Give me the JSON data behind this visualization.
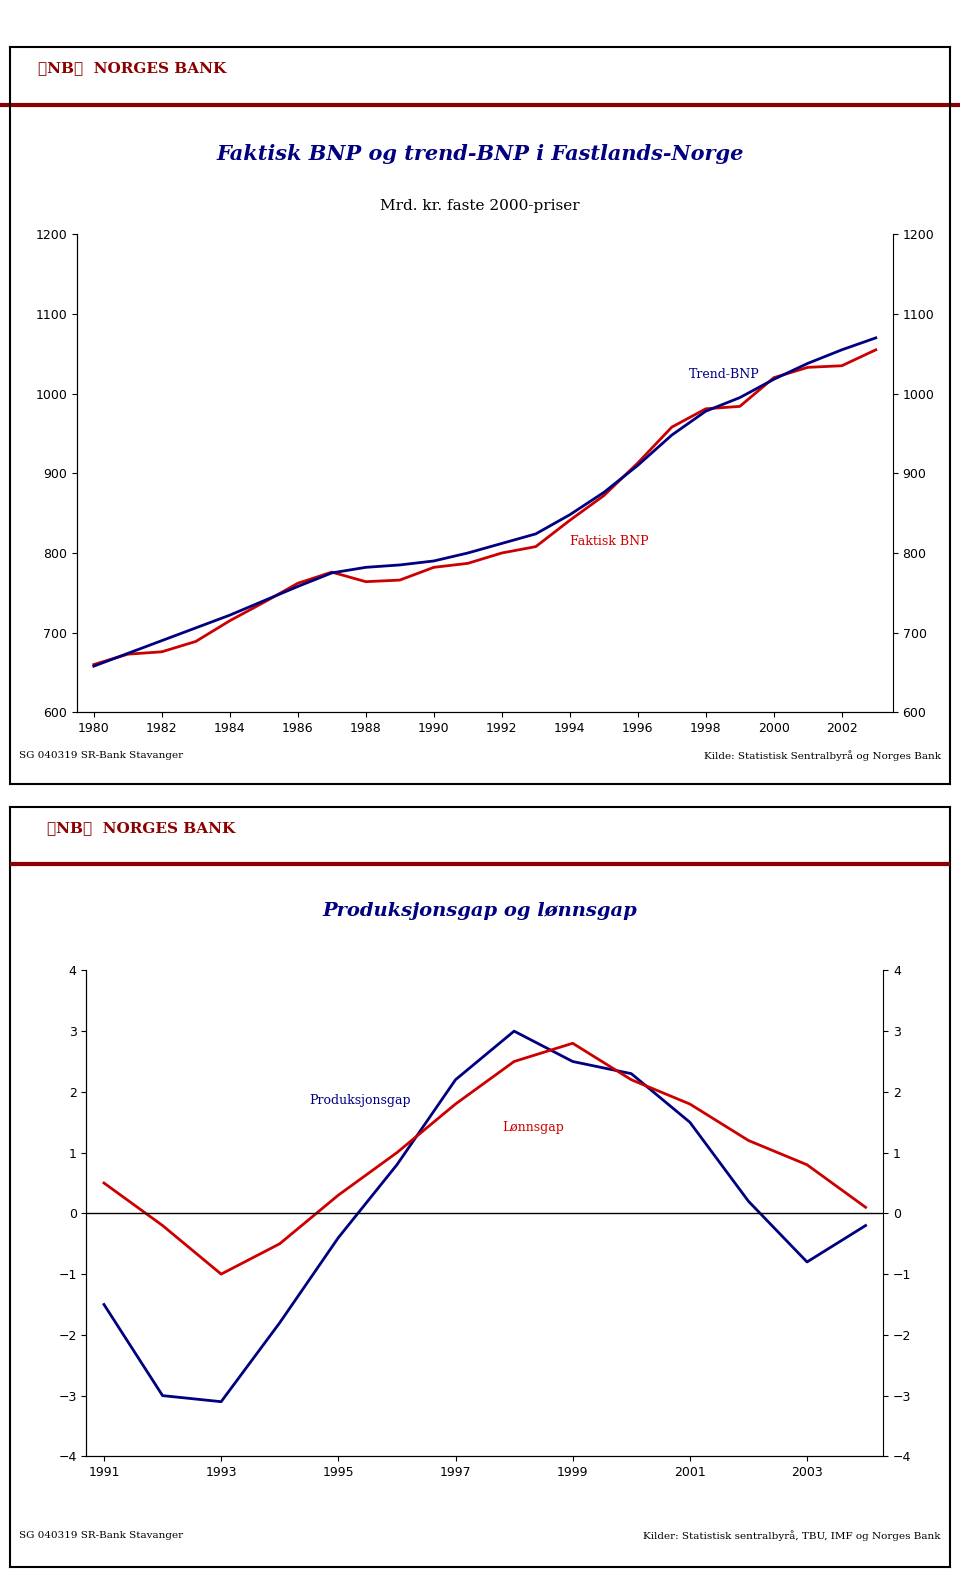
{
  "chart1": {
    "title_line1": "Faktisk BNP og trend-BNP i Fastlands-Norge",
    "title_line2": "Mrd. kr. faste 2000-priser",
    "years": [
      1980,
      1981,
      1982,
      1983,
      1984,
      1985,
      1986,
      1987,
      1988,
      1989,
      1990,
      1991,
      1992,
      1993,
      1994,
      1995,
      1996,
      1997,
      1998,
      1999,
      2000,
      2001,
      2002,
      2003
    ],
    "faktisk_bnp": [
      660,
      673,
      676,
      689,
      715,
      738,
      762,
      776,
      764,
      766,
      782,
      787,
      800,
      808,
      841,
      872,
      913,
      958,
      981,
      984,
      1020,
      1033,
      1035,
      1055
    ],
    "trend_bnp": [
      658,
      674,
      690,
      706,
      722,
      740,
      758,
      775,
      782,
      785,
      790,
      800,
      812,
      824,
      848,
      876,
      910,
      948,
      978,
      995,
      1018,
      1038,
      1055,
      1070
    ],
    "ylim": [
      600,
      1200
    ],
    "yticks": [
      600,
      700,
      800,
      900,
      1000,
      1100,
      1200
    ],
    "faktisk_color": "#cc0000",
    "trend_color": "#000080",
    "faktisk_label": "Faktisk BNP",
    "trend_label": "Trend-BNP",
    "footer_left": "SG 040319 SR-Bank Stavanger",
    "footer_right": "Kilde: Statistisk Sentralbyrå og Norges Bank"
  },
  "chart2": {
    "title": "Produksjonsgap og lønnsgap",
    "years": [
      1991,
      1992,
      1993,
      1994,
      1995,
      1996,
      1997,
      1998,
      1999,
      2000,
      2001,
      2002,
      2003,
      2004
    ],
    "produksjonsgap": [
      -1.5,
      -3.0,
      -3.1,
      -1.8,
      -0.4,
      0.8,
      2.2,
      3.0,
      2.5,
      2.3,
      1.5,
      0.2,
      -0.8,
      -0.2
    ],
    "lonnsgap": [
      0.5,
      -0.2,
      -1.0,
      -0.5,
      0.3,
      1.0,
      1.8,
      2.5,
      2.8,
      2.2,
      1.8,
      1.2,
      0.8,
      0.1
    ],
    "ylim": [
      -4,
      4
    ],
    "yticks": [
      -4,
      -3,
      -2,
      -1,
      0,
      1,
      2,
      3,
      4
    ],
    "produksjon_color": "#000080",
    "lonns_color": "#cc0000",
    "produksjon_label": "Produksjonsgap",
    "lonns_label": "Lønnsgap",
    "footer_left": "SG 040319 SR-Bank Stavanger",
    "footer_right": "Kilder: Statistisk sentralbyrå, TBU, IMF og Norges Bank"
  },
  "header_color": "#8b0000",
  "title_color": "#000080",
  "bg_color": "#ffffff"
}
